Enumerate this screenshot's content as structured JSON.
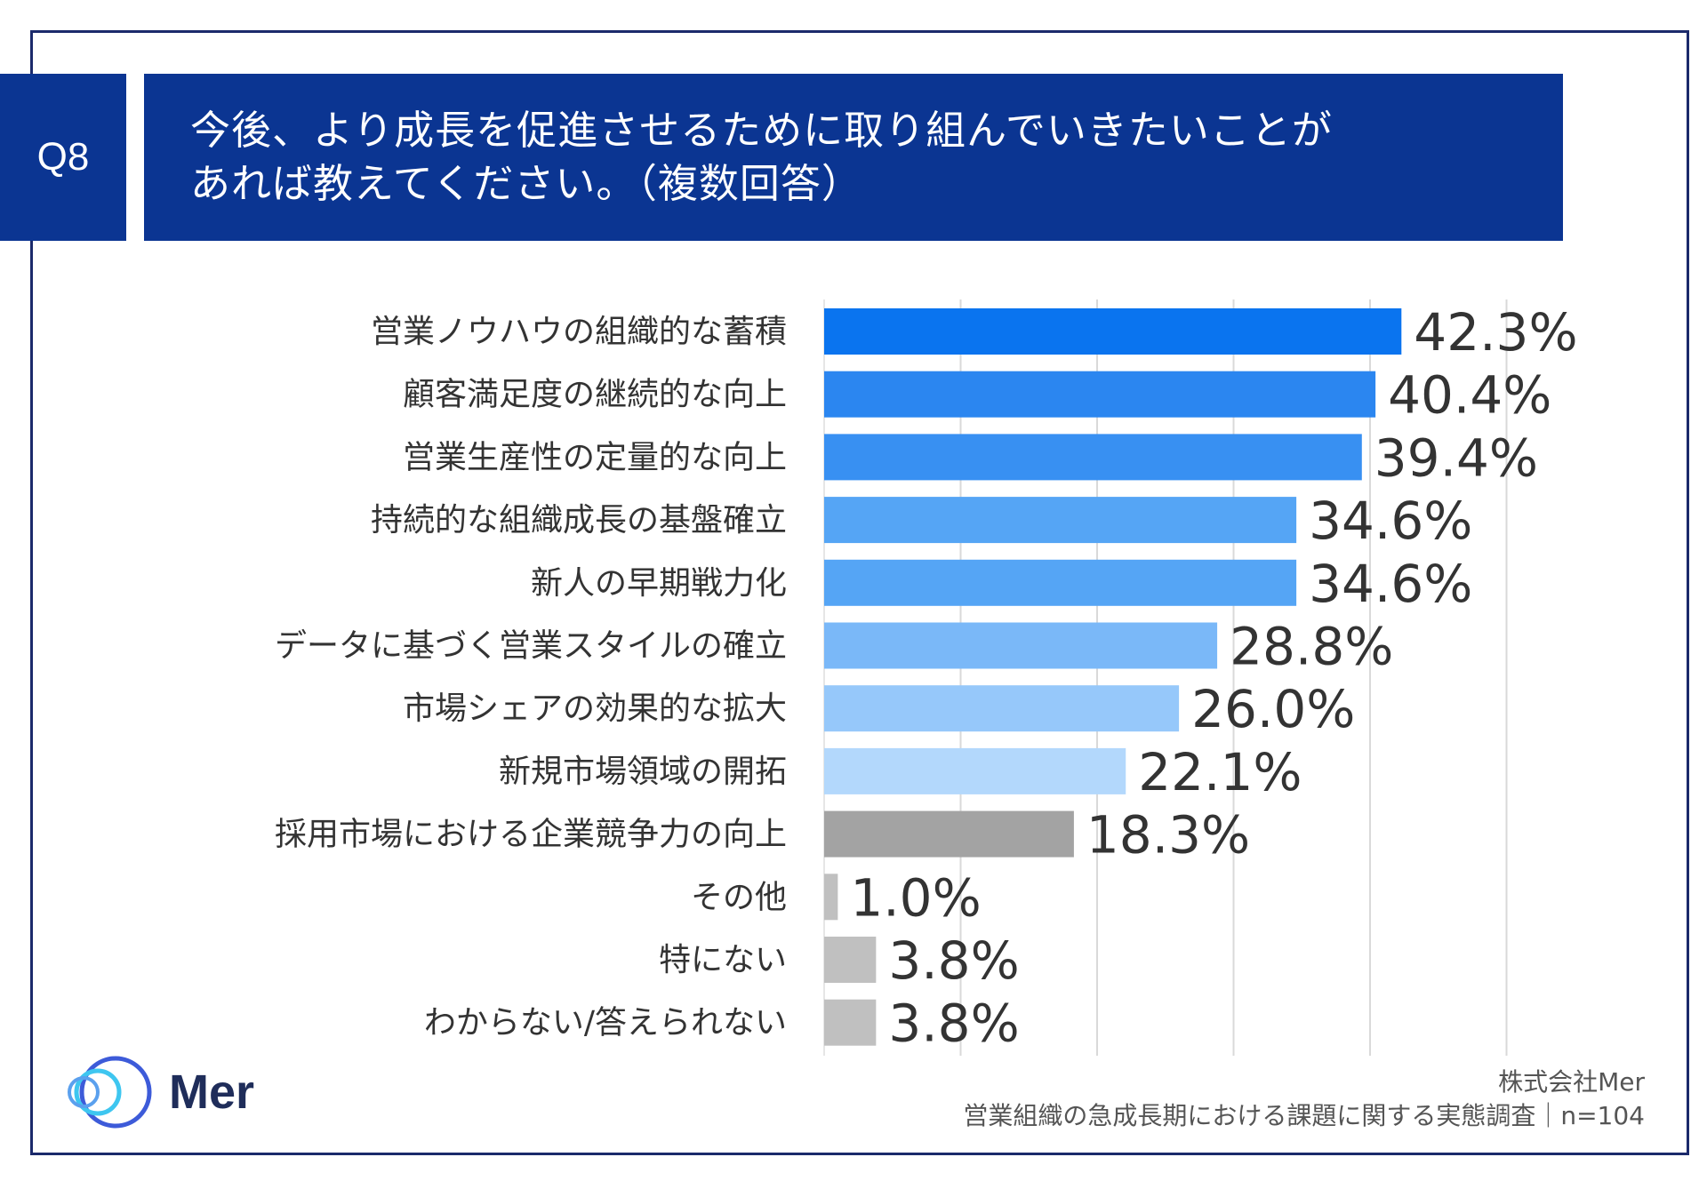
{
  "header": {
    "question_no": "Q8",
    "title_line1": "今後、より成長を促進させるために取り組んでいきたいことが",
    "title_line2": "あれば教えてください。（複数回答）"
  },
  "chart_data": {
    "type": "bar",
    "orientation": "horizontal",
    "categories": [
      "営業ノウハウの組織的な蓄積",
      "顧客満足度の継続的な向上",
      "営業生産性の定量的な向上",
      "持続的な組織成長の基盤確立",
      "新人の早期戦力化",
      "データに基づく営業スタイルの確立",
      "市場シェアの効果的な拡大",
      "新規市場領域の開拓",
      "採用市場における企業競争力の向上",
      "その他",
      "特にない",
      "わからない/答えられない"
    ],
    "values": [
      42.3,
      40.4,
      39.4,
      34.6,
      34.6,
      28.8,
      26.0,
      22.1,
      18.3,
      1.0,
      3.8,
      3.8
    ],
    "value_labels": [
      "42.3%",
      "40.4%",
      "39.4%",
      "34.6%",
      "34.6%",
      "28.8%",
      "26.0%",
      "22.1%",
      "18.3%",
      "1.0%",
      "3.8%",
      "3.8%"
    ],
    "colors": [
      "#0a74ef",
      "#2b86f0",
      "#3890f2",
      "#55a5f5",
      "#55a5f5",
      "#7ab8f8",
      "#96c8fa",
      "#b3d8fc",
      "#a3a3a3",
      "#c0c0c0",
      "#c0c0c0",
      "#c0c0c0"
    ],
    "xlim": [
      0,
      50
    ],
    "grid": true
  },
  "footer": {
    "company": "株式会社Mer",
    "survey": "営業組織の急成長期における課題に関する実態調査｜n=104",
    "logo_text": "Mer",
    "logo_colors": [
      "#3ec6f0",
      "#3d5bd9"
    ]
  }
}
